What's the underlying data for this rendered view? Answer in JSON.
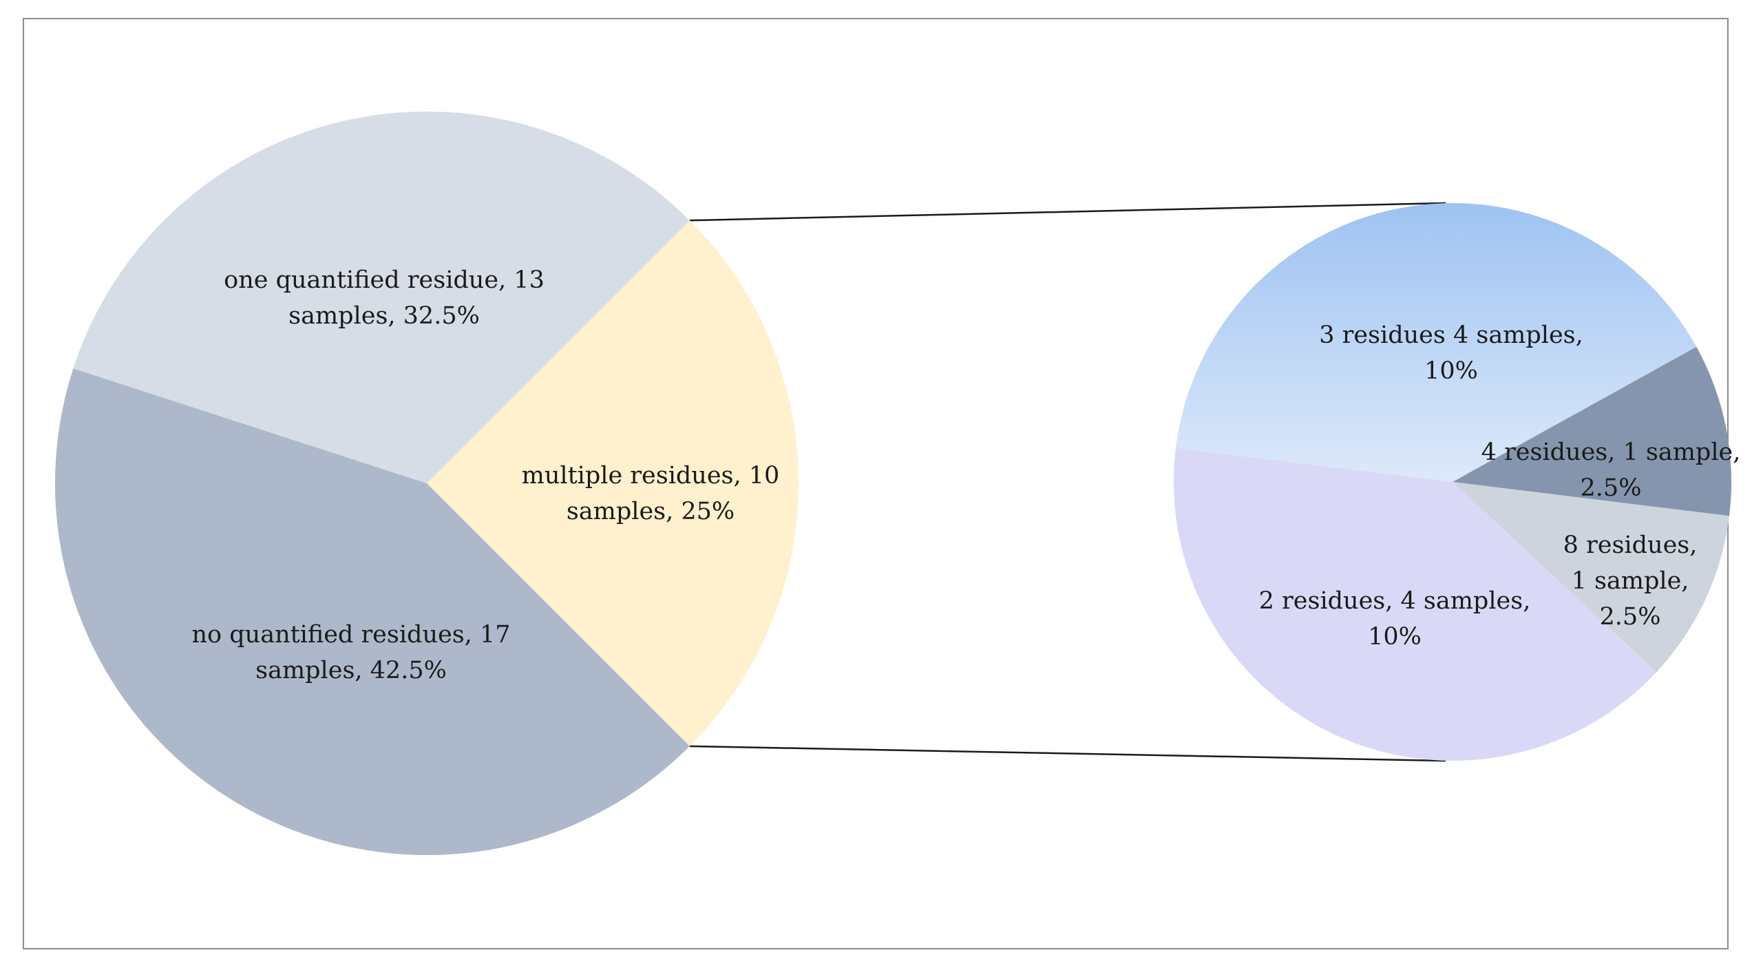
{
  "chart_data": {
    "type": "pie",
    "subtype": "pie-of-pie",
    "main": {
      "slices": [
        {
          "label_lines": [
            "one quantified residue, 13",
            "samples, 32.5%"
          ],
          "category": "one quantified residue",
          "samples": 13,
          "percent": 32.5,
          "color": "#d6dde7"
        },
        {
          "label_lines": [
            "multiple residues, 10",
            "samples, 25%"
          ],
          "category": "multiple residues",
          "samples": 10,
          "percent": 25,
          "color": "#fff1cd"
        },
        {
          "label_lines": [
            "no quantified residues, 17",
            "samples, 42.5%"
          ],
          "category": "no quantified residues",
          "samples": 17,
          "percent": 42.5,
          "color": "#adb8cb"
        }
      ]
    },
    "secondary": {
      "breakdown_of": "multiple residues, 10 samples, 25%",
      "slices": [
        {
          "label_lines": [
            "3 residues 4 samples,",
            "10%"
          ],
          "category": "3 residues",
          "samples": 4,
          "percent": 10,
          "color_top": "#9ec3f2",
          "color_bottom": "#dde9fa"
        },
        {
          "label_lines": [
            "4 residues, 1 sample,",
            "2.5%"
          ],
          "category": "4 residues",
          "samples": 1,
          "percent": 2.5,
          "color": "#8595ad"
        },
        {
          "label_lines": [
            "8 residues,",
            "1 sample,",
            "2.5%"
          ],
          "category": "8 residues",
          "samples": 1,
          "percent": 2.5,
          "color": "#cdd4de"
        },
        {
          "label_lines": [
            "2 residues, 4 samples,",
            "10%"
          ],
          "category": "2 residues",
          "samples": 4,
          "percent": 10,
          "color": "#d9d9f7"
        }
      ]
    },
    "connector_color": "#1a1a1a",
    "legend": "none"
  }
}
